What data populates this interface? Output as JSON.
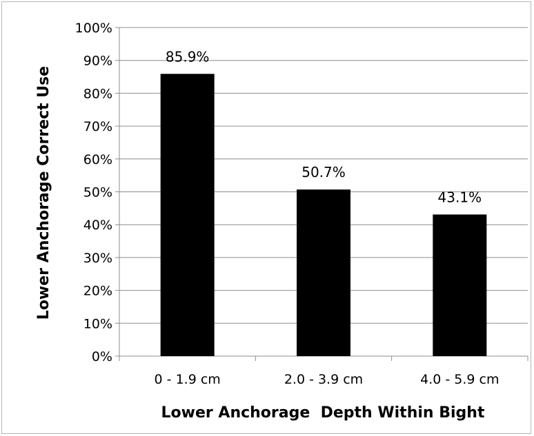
{
  "chart_data": {
    "type": "bar",
    "categories": [
      "0 - 1.9 cm",
      "2.0 - 3.9 cm",
      "4.0 - 5.9 cm"
    ],
    "values": [
      85.9,
      50.7,
      43.1
    ],
    "data_labels": [
      "85.9%",
      "50.7%",
      "43.1%"
    ],
    "xlabel": "Lower Anchorage  Depth Within Bight",
    "ylabel": "Lower Anchorage Correct Use",
    "ylim": [
      0,
      100
    ],
    "y_ticks": [
      0,
      10,
      20,
      30,
      40,
      50,
      60,
      70,
      80,
      90,
      100
    ],
    "y_tick_labels": [
      "0%",
      "10%",
      "20%",
      "30%",
      "40%",
      "50%",
      "60%",
      "70%",
      "80%",
      "90%",
      "100%"
    ],
    "grid": true,
    "legend": "none",
    "bar_color": "#000000",
    "grid_color": "#8c8c8c"
  }
}
